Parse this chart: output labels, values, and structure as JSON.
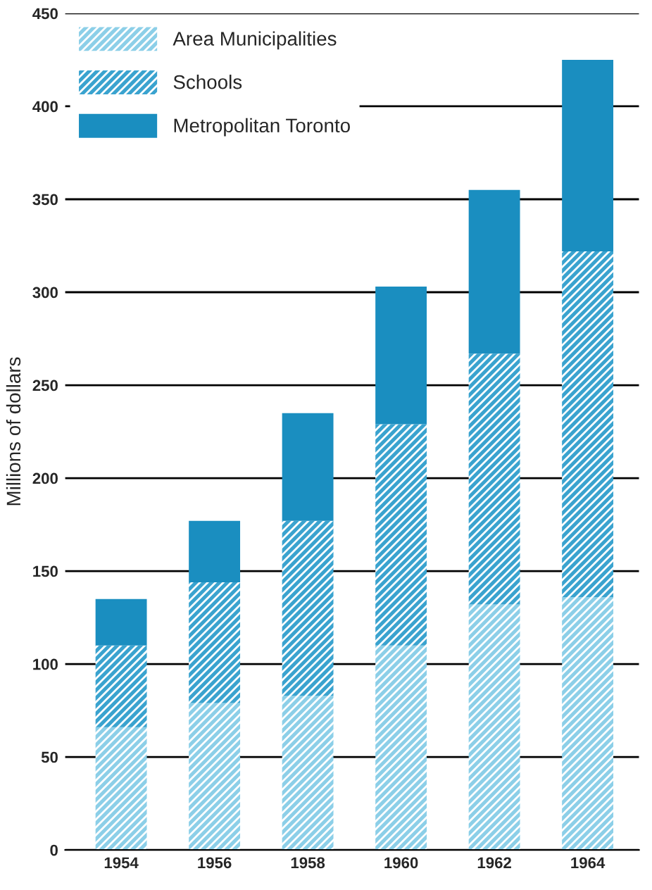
{
  "chart_data": {
    "type": "bar",
    "stacked": true,
    "ylabel": "Millions of dollars",
    "categories": [
      "1954",
      "1956",
      "1958",
      "1960",
      "1962",
      "1964"
    ],
    "series": [
      {
        "name": "Area Municipalities",
        "color": "#8ccfe8",
        "values": [
          66,
          79,
          83,
          110,
          132,
          136
        ]
      },
      {
        "name": "Schools",
        "color": "#3aa3cf",
        "values": [
          44,
          65,
          94,
          119,
          135,
          186
        ]
      },
      {
        "name": "Metropolitan Toronto",
        "color": "#1a8ec0",
        "values": [
          25,
          33,
          58,
          74,
          88,
          103
        ]
      }
    ],
    "ylim": [
      0,
      450
    ],
    "yticks": [
      0,
      50,
      100,
      150,
      200,
      250,
      300,
      350,
      400,
      450
    ],
    "grid": "y",
    "legend": "top left"
  }
}
